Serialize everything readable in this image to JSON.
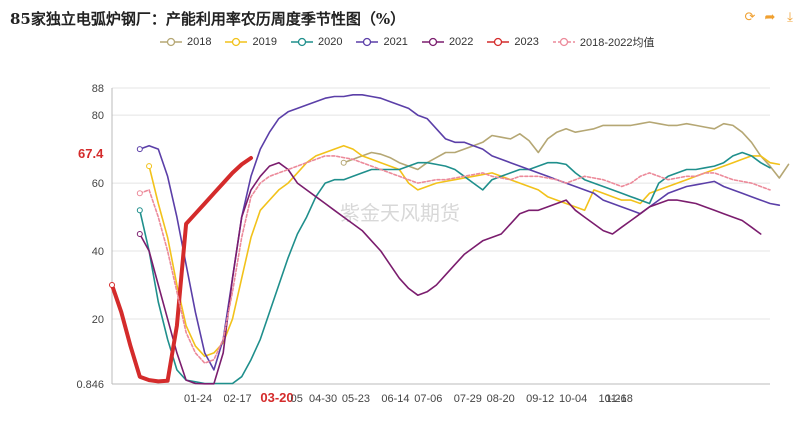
{
  "title": "85家独立电弧炉钢厂：产能利用率农历周度季节性图（%）",
  "toolbar": {
    "refresh_icon": "refresh-icon",
    "share_icon": "share-icon",
    "download_icon": "download-icon"
  },
  "chart_data": {
    "type": "line",
    "title": "85家独立电弧炉钢厂：产能利用率农历周度季节性图（%）",
    "xlabel": "",
    "ylabel": "",
    "ylim": [
      0.846,
      88
    ],
    "yticks": [
      "88",
      "80",
      "60",
      "40",
      "20",
      "0.846"
    ],
    "x_ticks": [
      "01-24",
      "02-17",
      "03-20",
      "05",
      "04-30",
      "05-23",
      "06-14",
      "07-06",
      "07-29",
      "08-20",
      "09-12",
      "10-04",
      "10-26",
      "11-18"
    ],
    "highlight_x_label": "03-20",
    "highlight_value_label": "67.4",
    "watermark": "紫金天风期货",
    "legend_position": "top",
    "series": [
      {
        "name": "2018",
        "color": "#b5a774",
        "dash": false,
        "width": 1.6,
        "values": [
          null,
          null,
          null,
          null,
          null,
          null,
          null,
          null,
          null,
          null,
          null,
          null,
          null,
          null,
          null,
          null,
          null,
          null,
          null,
          null,
          null,
          null,
          null,
          null,
          null,
          66,
          67,
          68,
          69,
          68.5,
          67.5,
          66,
          65,
          64,
          66,
          67.5,
          69,
          69,
          70,
          71,
          72,
          74,
          73.5,
          73,
          74.5,
          72.5,
          69,
          73,
          75,
          76,
          75,
          75.5,
          76,
          77,
          77,
          77,
          77,
          77.5,
          78,
          77.5,
          77,
          77,
          77.5,
          77,
          76.5,
          76,
          77.5,
          77,
          75,
          72,
          68,
          65,
          61.5,
          65.5
        ]
      },
      {
        "name": "2019",
        "color": "#f2c21a",
        "dash": false,
        "width": 1.6,
        "values": [
          null,
          null,
          null,
          null,
          65,
          54,
          44,
          30,
          18,
          12,
          9,
          10,
          13,
          20,
          32,
          44,
          52,
          55,
          58,
          60,
          63,
          66,
          68,
          69,
          70,
          71,
          70,
          68,
          67,
          66,
          65,
          64,
          60,
          58,
          59,
          60,
          60.5,
          61,
          61.5,
          62,
          62.5,
          63,
          62,
          61,
          60,
          59,
          58,
          56,
          55,
          54,
          53,
          52,
          58,
          57,
          56,
          55,
          55,
          54,
          57,
          58,
          59,
          60,
          61,
          62,
          63,
          64,
          65,
          66,
          67,
          68,
          68,
          66,
          65.5
        ]
      },
      {
        "name": "2020",
        "color": "#1f8f8c",
        "dash": false,
        "width": 1.6,
        "values": [
          null,
          null,
          null,
          52,
          40,
          25,
          14,
          5,
          2,
          1.5,
          1,
          1,
          1,
          1,
          3,
          8,
          14,
          22,
          30,
          38,
          45,
          50,
          56,
          60,
          61,
          61,
          62,
          63,
          64,
          64,
          64,
          64,
          65,
          66,
          66,
          65.5,
          65,
          64,
          62,
          60,
          58,
          61,
          62,
          63,
          64,
          64,
          65,
          66,
          66,
          65.5,
          63,
          61,
          60,
          59,
          58,
          57,
          56,
          55,
          54,
          60,
          62,
          63,
          64,
          64,
          64.5,
          65,
          66,
          68,
          69,
          68,
          66,
          64.5
        ]
      },
      {
        "name": "2021",
        "color": "#5b3fa8",
        "dash": false,
        "width": 1.6,
        "values": [
          null,
          null,
          null,
          70,
          71,
          70,
          62,
          50,
          36,
          22,
          10,
          5,
          14,
          32,
          50,
          62,
          70,
          75,
          79,
          81,
          82,
          83,
          84,
          85,
          85.5,
          85.5,
          86,
          86,
          85.5,
          85,
          84,
          83,
          82,
          80,
          79,
          76,
          73,
          72,
          72,
          71,
          70,
          68,
          67,
          66,
          65,
          64,
          63,
          62,
          61,
          60,
          59,
          58,
          57,
          55,
          54,
          53,
          52,
          51,
          53,
          55,
          57,
          58,
          59,
          59.5,
          60,
          60.5,
          59,
          58,
          57,
          56,
          55,
          54,
          53.5
        ]
      },
      {
        "name": "2022",
        "color": "#7b1d6e",
        "dash": false,
        "width": 1.6,
        "values": [
          null,
          null,
          null,
          45,
          40,
          30,
          20,
          10,
          2,
          1,
          0.9,
          0.9,
          10,
          32,
          50,
          58,
          62,
          65,
          66,
          64,
          60,
          58,
          56,
          54,
          52,
          50,
          48,
          46,
          43,
          40,
          36,
          32,
          29,
          27,
          28,
          30,
          33,
          36,
          39,
          41,
          43,
          44,
          45,
          48,
          51,
          52,
          52,
          53,
          54,
          55,
          52,
          50,
          48,
          46,
          45,
          47,
          49,
          51,
          53,
          54,
          55,
          55,
          54.5,
          54,
          53,
          52,
          51,
          50,
          49,
          47,
          45
        ]
      },
      {
        "name": "2023",
        "color": "#d42b2b",
        "dash": false,
        "width": 4,
        "values": [
          30,
          22,
          12,
          3,
          2,
          1.6,
          1.8,
          18,
          48,
          51,
          54,
          57,
          60,
          63,
          65.5,
          67.4
        ]
      },
      {
        "name": "2018-2022均值",
        "color": "#ec8a9a",
        "dash": true,
        "width": 1.6,
        "values": [
          null,
          null,
          null,
          57,
          58,
          50,
          40,
          28,
          16,
          10,
          7,
          8,
          14,
          28,
          44,
          56,
          60,
          62,
          63,
          64,
          65,
          66,
          67,
          68,
          68,
          67.5,
          67,
          66,
          65,
          64,
          63,
          62,
          61,
          60,
          60.5,
          61,
          61,
          61.5,
          62,
          62.5,
          63,
          62,
          61.5,
          61,
          62,
          62,
          62,
          61.5,
          61,
          60,
          61,
          62,
          61.5,
          61,
          60,
          59,
          60,
          62,
          63,
          62,
          61,
          61.5,
          62,
          62,
          63,
          63,
          62,
          61,
          60.5,
          60,
          59,
          58
        ]
      }
    ]
  }
}
